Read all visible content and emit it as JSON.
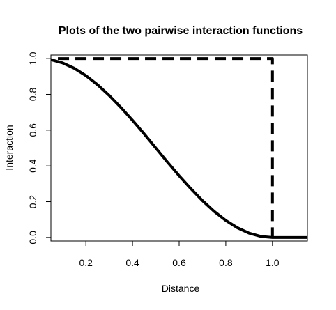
{
  "chart_data": {
    "type": "line",
    "title": "Plots of the two pairwise interaction functions",
    "xlabel": "Distance",
    "ylabel": "Interaction",
    "xlim": [
      0.05,
      1.15
    ],
    "ylim": [
      -0.02,
      1.02
    ],
    "x_ticks": [
      "0.2",
      "0.4",
      "0.6",
      "0.8",
      "1.0"
    ],
    "y_ticks": [
      "0.0",
      "0.2",
      "0.4",
      "0.6",
      "0.8",
      "1.0"
    ],
    "grid": false,
    "legend": "none",
    "series": [
      {
        "style": "solid",
        "color": "#000000",
        "x": [
          0.05,
          0.1,
          0.15,
          0.2,
          0.25,
          0.3,
          0.35,
          0.4,
          0.45,
          0.5,
          0.55,
          0.6,
          0.65,
          0.7,
          0.75,
          0.8,
          0.85,
          0.9,
          0.95,
          1.0,
          1.05,
          1.1,
          1.15
        ],
        "y": [
          0.994,
          0.976,
          0.946,
          0.905,
          0.854,
          0.794,
          0.727,
          0.655,
          0.579,
          0.5,
          0.421,
          0.345,
          0.273,
          0.206,
          0.146,
          0.095,
          0.054,
          0.024,
          0.006,
          0.0,
          0.0,
          0.0,
          0.0
        ]
      },
      {
        "style": "dashed",
        "color": "#000000",
        "x": [
          0.08,
          1.0,
          1.0
        ],
        "y": [
          1.0,
          1.0,
          0.0
        ]
      }
    ]
  }
}
